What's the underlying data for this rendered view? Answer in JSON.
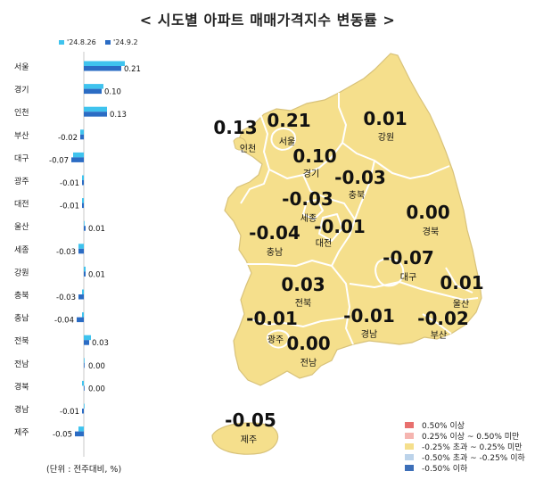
{
  "title": "< 시도별 아파트 매매가격지수 변동률 >",
  "unit_note": "(단위 : 전주대비, %)",
  "colors": {
    "prev_series": "#3fc3ee",
    "curr_series": "#2b6cc4",
    "map_fill": "#f5df8c",
    "map_stroke": "#ffffff",
    "map_outline": "#d8c27a"
  },
  "chart_data": [
    {
      "type": "bar",
      "orientation": "horizontal",
      "categories": [
        "서울",
        "경기",
        "인천",
        "부산",
        "대구",
        "광주",
        "대전",
        "울산",
        "세종",
        "강원",
        "충북",
        "충남",
        "전북",
        "전남",
        "경북",
        "경남",
        "제주"
      ],
      "series": [
        {
          "name": "'24.8.26",
          "values": [
            0.23,
            0.11,
            0.13,
            -0.02,
            -0.06,
            -0.01,
            -0.01,
            0.0,
            -0.03,
            0.01,
            -0.01,
            -0.01,
            0.04,
            0.0,
            -0.01,
            0.0,
            -0.03
          ]
        },
        {
          "name": "'24.9.2",
          "values": [
            0.21,
            0.1,
            0.13,
            -0.02,
            -0.07,
            -0.01,
            -0.01,
            0.01,
            -0.03,
            0.01,
            -0.03,
            -0.04,
            0.03,
            0.0,
            0.0,
            -0.01,
            -0.05
          ]
        }
      ],
      "value_labels": [
        "0.21",
        "0.10",
        "0.13",
        "-0.02",
        "-0.07",
        "-0.01",
        "-0.01",
        "0.01",
        "-0.03",
        "0.01",
        "-0.03",
        "-0.04",
        "0.03",
        "0.00",
        "0.00",
        "-0.01",
        "-0.05"
      ],
      "legend_position": "top",
      "grid": false
    },
    {
      "type": "choropleth-map",
      "regions": [
        {
          "name": "인천",
          "value": "0.13"
        },
        {
          "name": "서울",
          "value": "0.21"
        },
        {
          "name": "강원",
          "value": "0.01"
        },
        {
          "name": "경기",
          "value": "0.10"
        },
        {
          "name": "충북",
          "value": "-0.03"
        },
        {
          "name": "세종",
          "value": "-0.03"
        },
        {
          "name": "대전",
          "value": "-0.01"
        },
        {
          "name": "충남",
          "value": "-0.04"
        },
        {
          "name": "경북",
          "value": "0.00"
        },
        {
          "name": "대구",
          "value": "-0.07"
        },
        {
          "name": "전북",
          "value": "0.03"
        },
        {
          "name": "울산",
          "value": "0.01"
        },
        {
          "name": "광주",
          "value": "-0.01"
        },
        {
          "name": "경남",
          "value": "-0.01"
        },
        {
          "name": "부산",
          "value": "-0.02"
        },
        {
          "name": "전남",
          "value": "0.00"
        },
        {
          "name": "제주",
          "value": "-0.05"
        }
      ],
      "legend": [
        {
          "label": "0.50% 이상",
          "color": "#e8706e"
        },
        {
          "label": "0.25% 이상 ~ 0.50% 미만",
          "color": "#f5b5b0"
        },
        {
          "label": "-0.25% 초과 ~ 0.25% 미만",
          "color": "#f5df8c"
        },
        {
          "label": "-0.50% 초과 ~ -0.25% 이하",
          "color": "#bcd3ea"
        },
        {
          "label": "-0.50% 이하",
          "color": "#3d6fb8"
        }
      ]
    }
  ]
}
